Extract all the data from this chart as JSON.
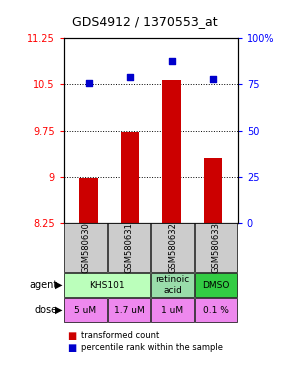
{
  "title": "GDS4912 / 1370553_at",
  "samples": [
    "GSM580630",
    "GSM580631",
    "GSM580632",
    "GSM580633"
  ],
  "bar_values": [
    8.97,
    9.72,
    10.57,
    9.3
  ],
  "dot_values": [
    76,
    79,
    88,
    78
  ],
  "ylim_left": [
    8.25,
    11.25
  ],
  "ylim_right": [
    0,
    100
  ],
  "yticks_left": [
    8.25,
    9.0,
    9.75,
    10.5,
    11.25
  ],
  "ytick_labels_left": [
    "8.25",
    "9",
    "9.75",
    "10.5",
    "11.25"
  ],
  "yticks_right": [
    0,
    25,
    50,
    75,
    100
  ],
  "ytick_labels_right": [
    "0",
    "25",
    "50",
    "75",
    "100%"
  ],
  "hlines": [
    9.0,
    9.75,
    10.5
  ],
  "bar_color": "#cc0000",
  "dot_color": "#0000cc",
  "bar_bottom": 8.25,
  "agent_spans": [
    [
      0,
      2,
      "KHS101",
      "#bbffbb"
    ],
    [
      2,
      3,
      "retinoic\nacid",
      "#99ddaa"
    ],
    [
      3,
      4,
      "DMSO",
      "#33cc44"
    ]
  ],
  "doses": [
    "5 uM",
    "1.7 uM",
    "1 uM",
    "0.1 %"
  ],
  "dose_color": "#ee88ee",
  "sample_bg": "#cccccc",
  "legend_bar_color": "#cc0000",
  "legend_dot_color": "#0000cc",
  "title_fontsize": 9
}
